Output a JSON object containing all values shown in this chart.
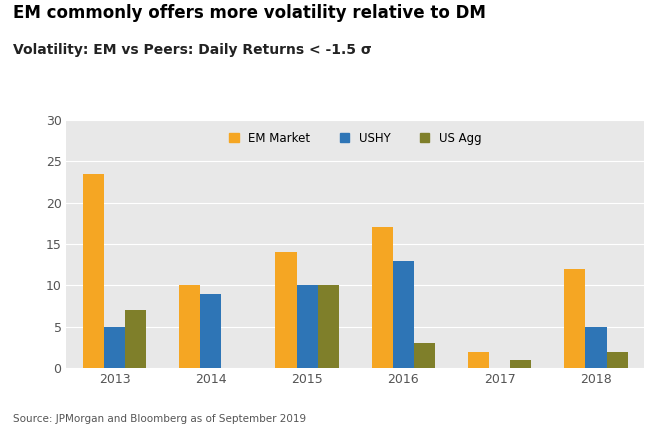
{
  "title": "EM commonly offers more volatility relative to DM",
  "subtitle": "Volatility: EM vs Peers: Daily Returns < -1.5 σ",
  "years": [
    "2013",
    "2014",
    "2015",
    "2016",
    "2017",
    "2018"
  ],
  "em_market": [
    23.5,
    10,
    14,
    17,
    2,
    12
  ],
  "ushy": [
    5,
    9,
    10,
    13,
    0,
    5
  ],
  "us_agg": [
    7,
    0,
    10,
    3,
    1,
    2
  ],
  "em_color": "#F5A623",
  "ushy_color": "#2E75B6",
  "us_agg_color": "#7F7F2A",
  "bg_color": "#E8E8E8",
  "fig_bg_color": "#FFFFFF",
  "ylim": [
    0,
    30
  ],
  "yticks": [
    0,
    5,
    10,
    15,
    20,
    25,
    30
  ],
  "source": "Source: JPMorgan and Bloomberg as of September 2019",
  "legend_labels": [
    "EM Market",
    "USHY",
    "US Agg"
  ],
  "bar_width": 0.22
}
